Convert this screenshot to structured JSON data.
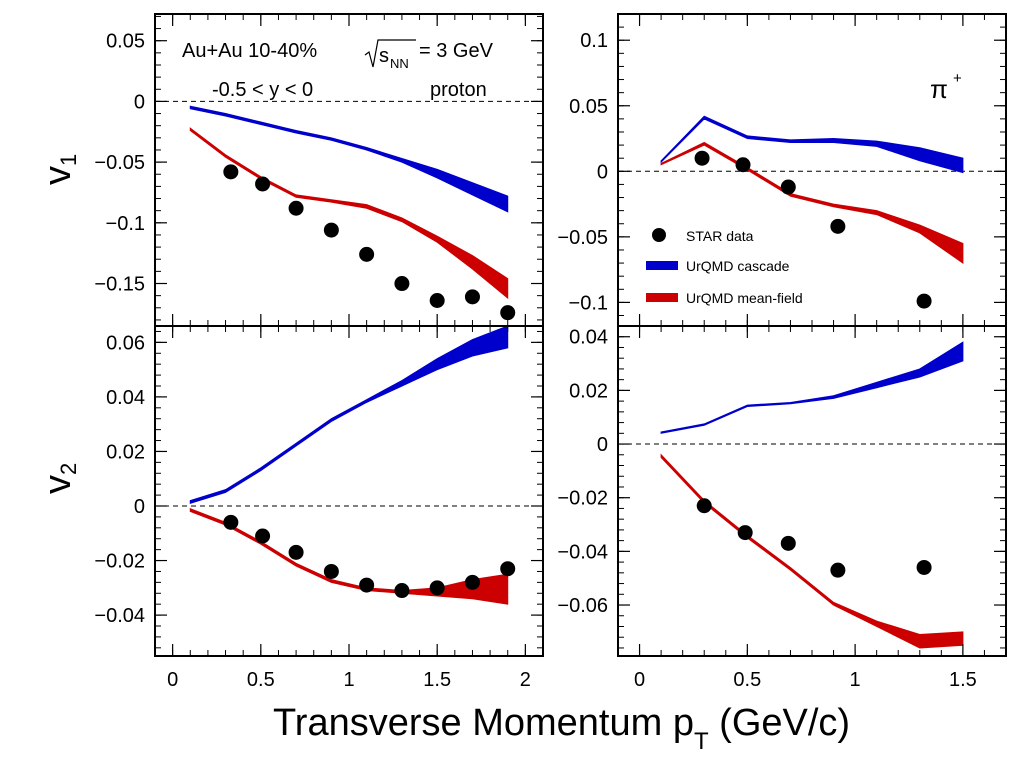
{
  "figure": {
    "xlabel_main": "Transverse Momentum p",
    "xlabel_sub": "T",
    "xlabel_unit": " (GeV/c)",
    "ylabel_top_main": "v",
    "ylabel_top_sub": "1",
    "ylabel_bottom_main": "v",
    "ylabel_bottom_sub": "2",
    "annotation_system": "Au+Au 10-40%",
    "annotation_sqrt": "s",
    "annotation_sqrt_sub": "NN",
    "annotation_energy": "= 3 GeV",
    "annotation_rapidity": "-0.5 < y < 0",
    "annotation_proton": "proton",
    "annotation_pion": "π",
    "annotation_pion_sup": "+",
    "legend": [
      {
        "label": "STAR data",
        "kind": "marker",
        "color": "#000000"
      },
      {
        "label": "UrQMD cascade",
        "kind": "band",
        "color": "#0000cc"
      },
      {
        "label": "UrQMD mean-field",
        "kind": "band",
        "color": "#cc0000"
      }
    ]
  },
  "chart_data": [
    {
      "id": "proton-v1",
      "type": "scatter",
      "xlim": [
        -0.1,
        2.1
      ],
      "ylim": [
        -0.185,
        0.072
      ],
      "xticks": [
        0,
        0.5,
        1,
        1.5,
        2
      ],
      "xticklabels": [
        "0",
        "0.5",
        "1",
        "1.5",
        "2"
      ],
      "yticks": [
        0.05,
        0,
        -0.05,
        -0.1,
        -0.15
      ],
      "yticklabels": [
        "0.05",
        "0",
        "−0.05",
        "−0.1",
        "−0.15"
      ],
      "star": {
        "x": [
          0.33,
          0.51,
          0.7,
          0.9,
          1.1,
          1.3,
          1.5,
          1.7,
          1.9
        ],
        "y": [
          -0.058,
          -0.068,
          -0.088,
          -0.106,
          -0.126,
          -0.15,
          -0.164,
          -0.161,
          -0.174
        ]
      },
      "cascade": {
        "x": [
          0.1,
          0.3,
          0.5,
          0.7,
          0.9,
          1.1,
          1.3,
          1.5,
          1.7,
          1.9
        ],
        "low": [
          -0.006,
          -0.012,
          -0.019,
          -0.026,
          -0.032,
          -0.04,
          -0.05,
          -0.063,
          -0.077,
          -0.091
        ],
        "high": [
          -0.004,
          -0.01,
          -0.017,
          -0.024,
          -0.03,
          -0.038,
          -0.047,
          -0.056,
          -0.067,
          -0.078
        ]
      },
      "meanfield": {
        "x": [
          0.1,
          0.3,
          0.5,
          0.7,
          0.9,
          1.1,
          1.3,
          1.5,
          1.7,
          1.9
        ],
        "low": [
          -0.024,
          -0.046,
          -0.064,
          -0.079,
          -0.083,
          -0.088,
          -0.099,
          -0.116,
          -0.138,
          -0.162
        ],
        "high": [
          -0.022,
          -0.044,
          -0.062,
          -0.077,
          -0.081,
          -0.085,
          -0.096,
          -0.111,
          -0.127,
          -0.146
        ]
      }
    },
    {
      "id": "pion-v1",
      "type": "scatter",
      "xlim": [
        -0.1,
        1.7
      ],
      "ylim": [
        -0.118,
        0.12
      ],
      "xticks": [
        0,
        0.5,
        1,
        1.5
      ],
      "xticklabels": [
        "0",
        "0.5",
        "1",
        "1.5"
      ],
      "yticks": [
        0.1,
        0.05,
        0,
        -0.05,
        -0.1
      ],
      "yticklabels": [
        "0.1",
        "0.05",
        "0",
        "−0.05",
        "−0.1"
      ],
      "star": {
        "x": [
          0.29,
          0.48,
          0.69,
          0.92,
          1.32
        ],
        "y": [
          0.01,
          0.005,
          -0.012,
          -0.042,
          -0.099
        ]
      },
      "cascade": {
        "x": [
          0.1,
          0.3,
          0.5,
          0.7,
          0.9,
          1.1,
          1.3,
          1.5
        ],
        "low": [
          0.007,
          0.04,
          0.025,
          0.022,
          0.022,
          0.019,
          0.008,
          -0.001
        ],
        "high": [
          0.008,
          0.042,
          0.027,
          0.024,
          0.025,
          0.023,
          0.018,
          0.01
        ]
      },
      "meanfield": {
        "x": [
          0.1,
          0.3,
          0.5,
          0.7,
          0.9,
          1.1,
          1.3,
          1.5
        ],
        "low": [
          0.005,
          0.02,
          0.001,
          -0.019,
          -0.027,
          -0.033,
          -0.047,
          -0.07
        ],
        "high": [
          0.006,
          0.022,
          0.003,
          -0.017,
          -0.025,
          -0.03,
          -0.041,
          -0.055
        ]
      }
    },
    {
      "id": "proton-v2",
      "type": "scatter",
      "xlim": [
        -0.1,
        2.1
      ],
      "ylim": [
        -0.055,
        0.066
      ],
      "xticks": [
        0,
        0.5,
        1,
        1.5,
        2
      ],
      "xticklabels": [
        "0",
        "0.5",
        "1",
        "1.5",
        "2"
      ],
      "yticks": [
        0.06,
        0.04,
        0.02,
        0,
        -0.02,
        -0.04
      ],
      "yticklabels": [
        "0.06",
        "0.04",
        "0.02",
        "0",
        "−0.02",
        "−0.04"
      ],
      "star": {
        "x": [
          0.33,
          0.51,
          0.7,
          0.9,
          1.1,
          1.3,
          1.5,
          1.7,
          1.9
        ],
        "y": [
          -0.006,
          -0.011,
          -0.017,
          -0.024,
          -0.029,
          -0.031,
          -0.03,
          -0.028,
          -0.023
        ]
      },
      "cascade": {
        "x": [
          0.1,
          0.3,
          0.5,
          0.7,
          0.9,
          1.1,
          1.3,
          1.5,
          1.7,
          1.9
        ],
        "low": [
          0.001,
          0.005,
          0.013,
          0.022,
          0.031,
          0.038,
          0.044,
          0.05,
          0.055,
          0.058
        ],
        "high": [
          0.002,
          0.006,
          0.014,
          0.023,
          0.032,
          0.039,
          0.046,
          0.054,
          0.061,
          0.066
        ]
      },
      "meanfield": {
        "x": [
          0.1,
          0.3,
          0.5,
          0.7,
          0.9,
          1.1,
          1.3,
          1.5,
          1.7,
          1.9
        ],
        "low": [
          -0.002,
          -0.007,
          -0.014,
          -0.022,
          -0.028,
          -0.031,
          -0.032,
          -0.033,
          -0.034,
          -0.036
        ],
        "high": [
          -0.001,
          -0.006,
          -0.013,
          -0.021,
          -0.027,
          -0.03,
          -0.031,
          -0.03,
          -0.027,
          -0.025
        ]
      }
    },
    {
      "id": "pion-v2",
      "type": "scatter",
      "xlim": [
        -0.1,
        1.7
      ],
      "ylim": [
        -0.079,
        0.044
      ],
      "xticks": [
        0,
        0.5,
        1,
        1.5
      ],
      "xticklabels": [
        "0",
        "0.5",
        "1",
        "1.5"
      ],
      "yticks": [
        0.04,
        0.02,
        0,
        -0.02,
        -0.04,
        -0.06
      ],
      "yticklabels": [
        "0.04",
        "0.02",
        "0",
        "−0.02",
        "−0.04",
        "−0.06"
      ],
      "star": {
        "x": [
          0.3,
          0.49,
          0.69,
          0.92,
          1.32
        ],
        "y": [
          -0.023,
          -0.033,
          -0.037,
          -0.047,
          -0.046
        ]
      },
      "cascade": {
        "x": [
          0.1,
          0.3,
          0.5,
          0.7,
          0.9,
          1.1,
          1.3,
          1.5
        ],
        "low": [
          0.004,
          0.007,
          0.014,
          0.015,
          0.017,
          0.021,
          0.025,
          0.031
        ],
        "high": [
          0.0045,
          0.0075,
          0.0145,
          0.0155,
          0.018,
          0.023,
          0.028,
          0.038
        ]
      },
      "meanfield": {
        "x": [
          0.1,
          0.3,
          0.5,
          0.7,
          0.9,
          1.1,
          1.3,
          1.5
        ],
        "low": [
          -0.005,
          -0.022,
          -0.035,
          -0.047,
          -0.06,
          -0.068,
          -0.076,
          -0.075
        ],
        "high": [
          -0.004,
          -0.021,
          -0.034,
          -0.046,
          -0.059,
          -0.066,
          -0.071,
          -0.07
        ]
      }
    }
  ]
}
